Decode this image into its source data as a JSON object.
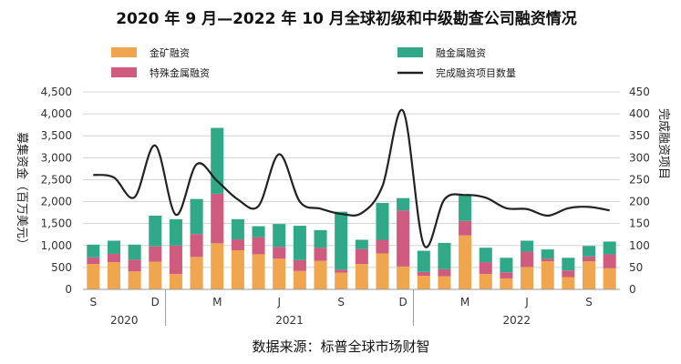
{
  "chart_data": {
    "type": "bar",
    "title": "2020 年 9 月—2022 年 10 月全球初级和中级勘查公司融资情况",
    "ylabel": "募集资金（百万美元）",
    "y2label": "完成融资项目",
    "source": "数据来源：标普全球市场财智",
    "ylim": [
      0,
      4500
    ],
    "y_ticks": [
      "0",
      "500",
      "1,000",
      "1,500",
      "2,000",
      "2,500",
      "3,000",
      "3,500",
      "4,000",
      "4,500"
    ],
    "y2lim": [
      0,
      450
    ],
    "y2_ticks": [
      "0",
      "50",
      "100",
      "150",
      "200",
      "250",
      "300",
      "350",
      "400",
      "450"
    ],
    "grid": true,
    "stacked": true,
    "legend_position": "top",
    "x_tick_labels": [
      "S",
      "D",
      "M",
      "J",
      "S",
      "D",
      "M",
      "J",
      "S"
    ],
    "x_tick_index": [
      0,
      3,
      6,
      9,
      12,
      15,
      18,
      21,
      24
    ],
    "years": [
      "2020",
      "2021",
      "2022"
    ],
    "year_ranges": [
      [
        0,
        3
      ],
      [
        4,
        15
      ],
      [
        16,
        25
      ]
    ],
    "months": [
      "2020-09",
      "2020-10",
      "2020-11",
      "2020-12",
      "2021-01",
      "2021-02",
      "2021-03",
      "2021-04",
      "2021-05",
      "2021-06",
      "2021-07",
      "2021-08",
      "2021-09",
      "2021-10",
      "2021-11",
      "2021-12",
      "2022-01",
      "2022-02",
      "2022-03",
      "2022-04",
      "2022-05",
      "2022-06",
      "2022-07",
      "2022-08",
      "2022-09",
      "2022-10"
    ],
    "series": [
      {
        "name": "金矿融资",
        "color": "#f0a54f",
        "values": [
          580,
          620,
          410,
          630,
          350,
          740,
          1050,
          890,
          800,
          700,
          420,
          650,
          380,
          580,
          820,
          520,
          310,
          300,
          1230,
          350,
          250,
          510,
          640,
          280,
          640,
          480
        ]
      },
      {
        "name": "特殊金属融资",
        "color": "#cf5b7e",
        "values": [
          150,
          190,
          270,
          350,
          650,
          520,
          1130,
          250,
          390,
          270,
          250,
          300,
          70,
          340,
          310,
          1280,
          90,
          160,
          330,
          270,
          140,
          350,
          60,
          150,
          110,
          320
        ]
      },
      {
        "name": "融金属融资",
        "color": "#2fa987",
        "values": [
          290,
          300,
          340,
          700,
          600,
          800,
          1500,
          460,
          250,
          520,
          780,
          400,
          1320,
          210,
          840,
          280,
          480,
          600,
          600,
          330,
          330,
          250,
          210,
          290,
          240,
          290
        ]
      }
    ],
    "line": {
      "name": "完成融资项目数量",
      "color": "#222222",
      "values": [
        261,
        255,
        210,
        328,
        170,
        285,
        247,
        205,
        190,
        308,
        200,
        184,
        172,
        174,
        235,
        407,
        102,
        205,
        215,
        209,
        185,
        183,
        168,
        185,
        188,
        180
      ]
    }
  }
}
